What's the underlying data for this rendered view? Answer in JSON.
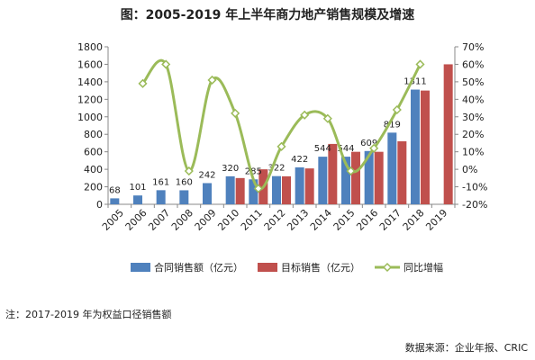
{
  "chart_data": {
    "type": "bar",
    "title": "图：2005-2019 年上半年商力地产销售规模及增速",
    "categories": [
      "2005",
      "2006",
      "2007",
      "2008",
      "2009",
      "2010",
      "2011",
      "2012",
      "2013",
      "2014",
      "2015",
      "2016",
      "2017",
      "2018",
      "2019"
    ],
    "series": [
      {
        "name": "合同销售额（亿元）",
        "type": "bar",
        "axis": "left",
        "color": "#4f81bd",
        "values": [
          68,
          101,
          161,
          160,
          242,
          320,
          285,
          322,
          422,
          544,
          544,
          609,
          819,
          1311,
          null
        ],
        "labels": [
          "68",
          "101",
          "161",
          "160",
          "242",
          "320",
          "285",
          "322",
          "422",
          "544",
          "544",
          "609",
          "819",
          "1311",
          ""
        ]
      },
      {
        "name": "目标销售（亿元）",
        "type": "bar",
        "axis": "left",
        "color": "#c0504d",
        "values": [
          null,
          null,
          null,
          null,
          null,
          300,
          400,
          320,
          410,
          690,
          600,
          600,
          720,
          1300,
          1600
        ]
      },
      {
        "name": "同比增幅",
        "type": "line",
        "axis": "right",
        "color": "#9bbb59",
        "values": [
          null,
          49,
          60,
          -1,
          51,
          32,
          -11,
          13,
          31,
          29,
          -1,
          12,
          34,
          60,
          null
        ]
      }
    ],
    "y_left": {
      "min": 0,
      "max": 1800,
      "step": 200
    },
    "y_right": {
      "min": -20,
      "max": 70,
      "step": 10,
      "unit": "%"
    },
    "legend_position": "bottom",
    "grid": false
  },
  "note": "注：2017-2019 年为权益口径销售额",
  "source": "数据来源：企业年报、CRIC"
}
